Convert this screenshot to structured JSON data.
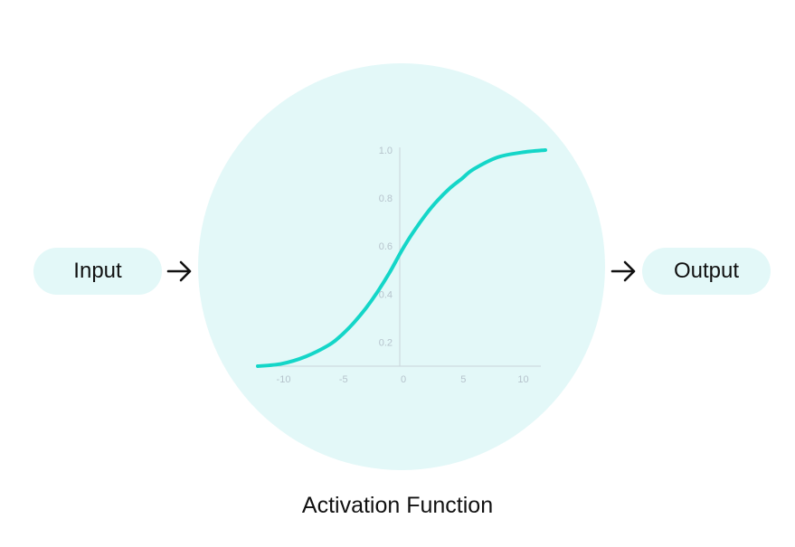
{
  "input_label": "Input",
  "output_label": "Output",
  "caption": "Activation Function",
  "colors": {
    "circle_fill": "#e3f8f8",
    "curve": "#14d6c8",
    "axis": "#c9d4da",
    "tick_text": "#b6c3cc"
  },
  "icons": {
    "input_arrow": "right-arrow-icon",
    "output_arrow": "right-arrow-icon"
  },
  "chart_data": {
    "type": "line",
    "function": "sigmoid",
    "xlim": [
      -12,
      12
    ],
    "ylim": [
      0.1,
      1.0
    ],
    "x_ticks": [
      -10,
      -5,
      0,
      5,
      10
    ],
    "y_ticks": [
      0.2,
      0.4,
      0.6,
      0.8,
      1.0
    ],
    "x_tick_labels": [
      "-10",
      "-5",
      "0",
      "5",
      "10"
    ],
    "y_tick_labels": [
      "0.2",
      "0.4",
      "0.6",
      "0.8",
      "1.0"
    ],
    "series": [
      {
        "x": [
          -12,
          -10,
          -8,
          -6,
          -5,
          -4,
          -3,
          -2,
          -1,
          0,
          1,
          2,
          3,
          4,
          5,
          6,
          8,
          10,
          12
        ],
        "y": [
          0.1,
          0.11,
          0.14,
          0.19,
          0.23,
          0.28,
          0.34,
          0.41,
          0.49,
          0.58,
          0.66,
          0.73,
          0.79,
          0.84,
          0.88,
          0.92,
          0.97,
          0.99,
          1.0
        ]
      }
    ]
  }
}
